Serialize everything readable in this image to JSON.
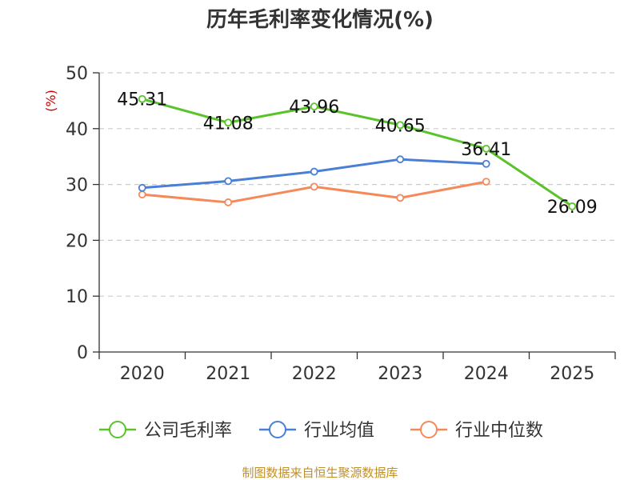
{
  "chart_data": {
    "type": "line",
    "title": "历年毛利率变化情况(%)",
    "unit_label": "(%)",
    "categories": [
      "2020",
      "2021",
      "2022",
      "2023",
      "2024",
      "2025"
    ],
    "ylim": [
      0,
      50
    ],
    "yticks": [
      0,
      10,
      20,
      30,
      40,
      50
    ],
    "grid": true,
    "legend_position": "bottom",
    "series": [
      {
        "name": "公司毛利率",
        "color": "#5ac22a",
        "values": [
          45.31,
          41.08,
          43.96,
          40.65,
          36.41,
          26.09
        ],
        "labels": [
          "45.31",
          "41.08",
          "43.96",
          "40.65",
          "36.41",
          "26.09"
        ]
      },
      {
        "name": "行业均值",
        "color": "#4a7fd6",
        "values": [
          29.4,
          30.6,
          32.3,
          34.5,
          33.7,
          null
        ]
      },
      {
        "name": "行业中位数",
        "color": "#f5895a",
        "values": [
          28.2,
          26.8,
          29.6,
          27.6,
          30.5,
          null
        ]
      }
    ]
  },
  "source_text": "制图数据来自恒生聚源数据库"
}
